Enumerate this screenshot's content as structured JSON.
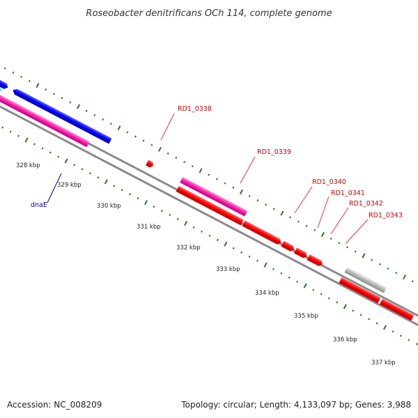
{
  "title": "Roseobacter denitrificans OCh 114, complete genome",
  "footer": {
    "accession": "Accession: NC_008209",
    "summary": "Topology: circular; Length: 4,133,097 bp; Genes: 3,988"
  },
  "colors": {
    "backbone": "#8a8a8a",
    "tick": "#1e7b1e",
    "red_gene": "#ff0000",
    "pink_gene": "#ff1fae",
    "blue_gene": "#0000ff",
    "cyan_gene": "#00d0d0",
    "gray_gene": "#bdbdbd",
    "label_red": "#cc0000",
    "label_blue": "#0000aa"
  },
  "scale_labels": [
    "328 kbp",
    "329 kbp",
    "330 kbp",
    "331 kbp",
    "332 kbp",
    "333 kbp",
    "334 kbp",
    "335 kbp",
    "336 kbp",
    "337 kbp"
  ],
  "gene_labels": [
    {
      "name": "RD1_0338",
      "color": "red"
    },
    {
      "name": "RD1_0339",
      "color": "red"
    },
    {
      "name": "RD1_0340",
      "color": "red"
    },
    {
      "name": "RD1_0341",
      "color": "red"
    },
    {
      "name": "RD1_0342",
      "color": "red"
    },
    {
      "name": "RD1_0343",
      "color": "red"
    },
    {
      "name": "dnaE",
      "color": "blue"
    }
  ]
}
